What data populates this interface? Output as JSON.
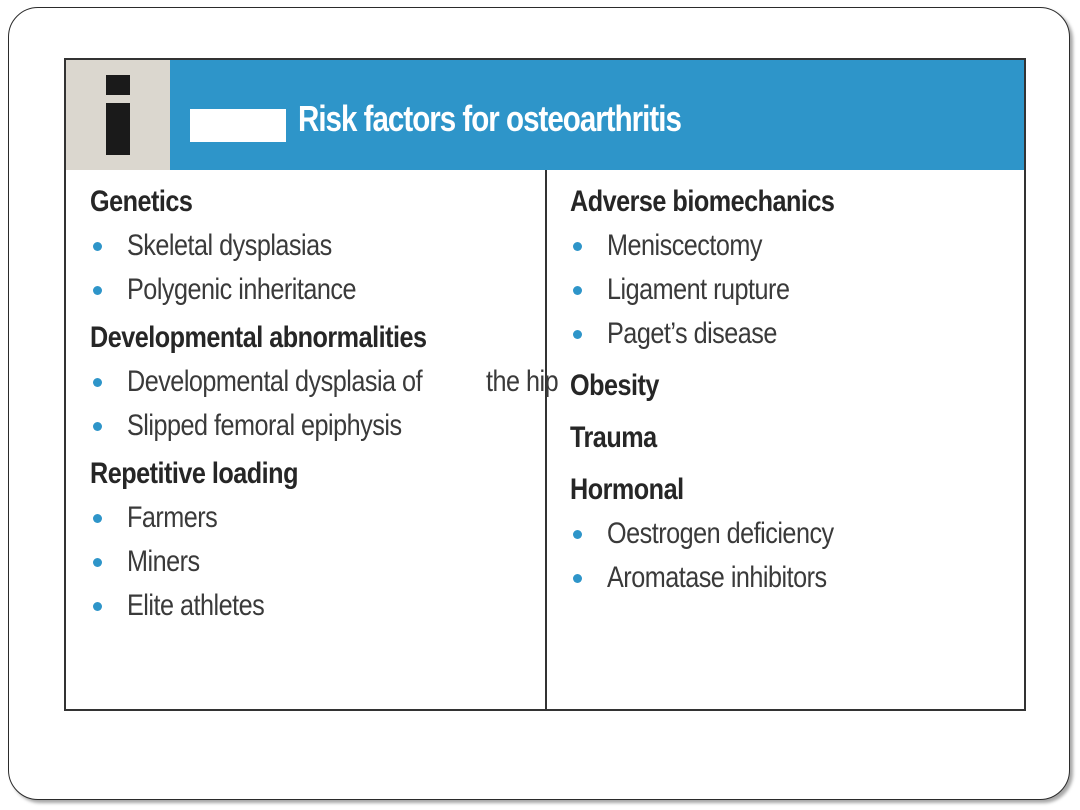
{
  "title": "Risk factors for osteoarthritis",
  "left_column": [
    {
      "heading": "Genetics",
      "items": [
        "Skeletal dysplasias",
        "Polygenic inheritance"
      ]
    },
    {
      "heading": "Developmental abnormalities",
      "items": [
        [
          "Developmental dysplasia of",
          "the hip"
        ],
        "Slipped femoral epiphysis"
      ]
    },
    {
      "heading": "Repetitive loading",
      "items": [
        "Farmers",
        "Miners",
        "Elite athletes"
      ]
    }
  ],
  "right_column": [
    {
      "heading": "Adverse biomechanics",
      "items": [
        "Meniscectomy",
        "Ligament rupture",
        "Paget’s disease"
      ]
    },
    {
      "heading": "Obesity",
      "items": []
    },
    {
      "heading": "Trauma",
      "items": []
    },
    {
      "heading": "Hormonal",
      "items": [
        "Oestrogen deficiency",
        "Aromatase inhibitors"
      ]
    }
  ],
  "colors": {
    "header_blue": "#2e95c9",
    "icon_cell": "#dbd7cf",
    "bullet": "#2e95c9"
  },
  "icons": {
    "info": "info-icon"
  }
}
